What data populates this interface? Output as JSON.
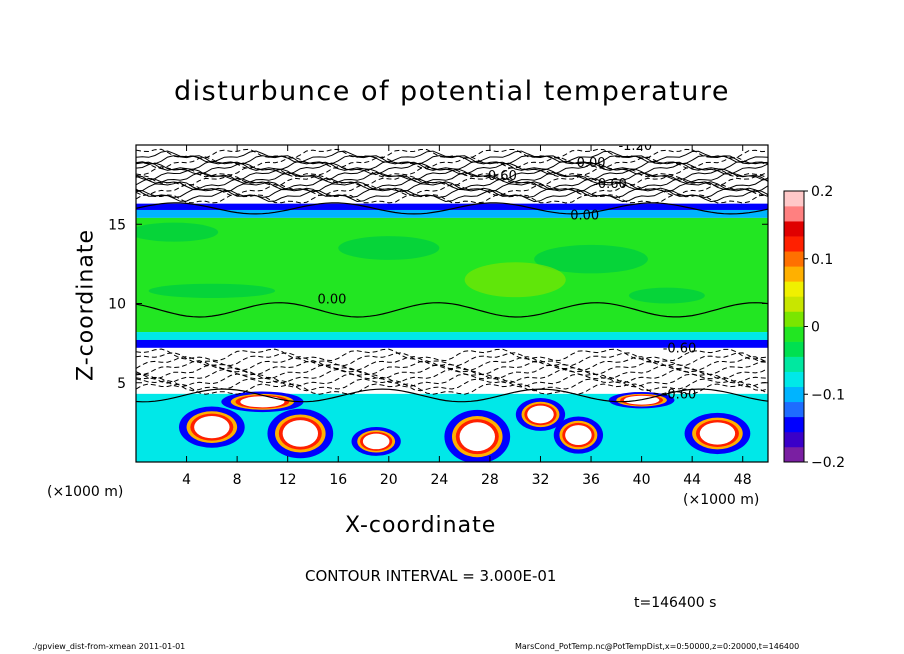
{
  "chart_data": {
    "type": "heatmap",
    "title": "disturbunce of potential temperature",
    "xlabel": "X-coordinate",
    "ylabel": "Z-coordinate",
    "x_unit_left": "(×1000 m)",
    "x_unit_right": "(×1000 m)",
    "xlim": [
      0,
      50
    ],
    "ylim": [
      0,
      20
    ],
    "x_ticks": [
      "4",
      "8",
      "12",
      "16",
      "20",
      "24",
      "28",
      "32",
      "36",
      "40",
      "44",
      "48"
    ],
    "y_ticks": [
      "5",
      "10",
      "15"
    ],
    "colorbar": {
      "range": [
        -0.2,
        0.2
      ],
      "labels": [
        "0.2",
        "0.1",
        "0",
        "−0.1",
        "−0.2"
      ],
      "colors": [
        "#7a1fa2",
        "#3a00c8",
        "#0000ff",
        "#1e6cff",
        "#00b4ff",
        "#00e8e8",
        "#00e8a0",
        "#00e050",
        "#22e622",
        "#7ae600",
        "#c8e600",
        "#f0f000",
        "#ffb000",
        "#ff7000",
        "#ff2000",
        "#e00000",
        "#ff8080",
        "#ffc8c8"
      ]
    },
    "contour_labels": [
      "-0.60",
      "0.00",
      "-0.60",
      "0.00",
      "-1.20",
      "-0.60",
      "0.00",
      "-0.60"
    ],
    "grid": false
  },
  "contour_interval": "CONTOUR INTERVAL = 3.000E-01",
  "time_label": "t=146400 s",
  "footer": {
    "left": "./gpview_dist-from-xmean  2011-01-01",
    "right": "MarsCond_PotTemp.nc@PotTempDist,x=0:50000,z=0:20000,t=146400"
  }
}
